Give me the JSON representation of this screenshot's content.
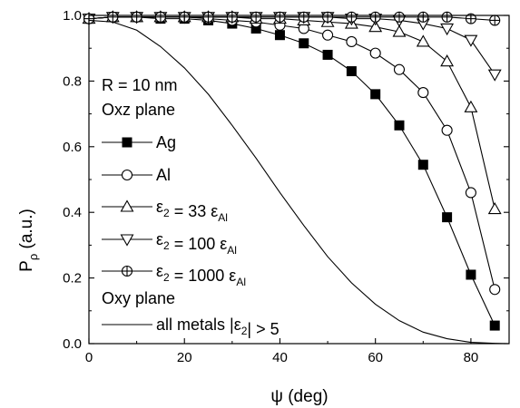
{
  "chart_data": {
    "type": "line",
    "title": "",
    "xlabel": "ψ (deg)",
    "ylabel_main": "P",
    "ylabel_sub": "ρ",
    "ylabel_unit": " (a.u.)",
    "xlim": [
      0,
      88
    ],
    "ylim": [
      0,
      1.0
    ],
    "x_ticks": [
      0,
      20,
      40,
      60,
      80
    ],
    "y_ticks": [
      0.0,
      0.2,
      0.4,
      0.6,
      0.8,
      1.0
    ],
    "grid": false,
    "legend_placement": "left",
    "annotations": {
      "radius": "R = 10 nm",
      "oxz_header": "Oxz plane",
      "oxy_header": "Oxy plane"
    },
    "series": [
      {
        "name": "Ag",
        "legend_parts": [
          {
            "text": "Ag",
            "sub": ""
          }
        ],
        "marker": "filled-square",
        "x": [
          0,
          5,
          10,
          15,
          20,
          25,
          30,
          35,
          40,
          45,
          50,
          55,
          60,
          65,
          70,
          75,
          80,
          85
        ],
        "y": [
          0.99,
          0.995,
          0.995,
          0.99,
          0.99,
          0.985,
          0.975,
          0.96,
          0.94,
          0.915,
          0.88,
          0.83,
          0.76,
          0.665,
          0.545,
          0.385,
          0.21,
          0.055
        ]
      },
      {
        "name": "Al",
        "legend_parts": [
          {
            "text": "Al",
            "sub": ""
          }
        ],
        "marker": "open-circle",
        "x": [
          0,
          5,
          10,
          15,
          20,
          25,
          30,
          35,
          40,
          45,
          50,
          55,
          60,
          65,
          70,
          75,
          80,
          85
        ],
        "y": [
          0.99,
          0.995,
          0.995,
          0.995,
          0.995,
          0.99,
          0.985,
          0.98,
          0.97,
          0.96,
          0.94,
          0.92,
          0.885,
          0.835,
          0.765,
          0.65,
          0.46,
          0.165
        ]
      },
      {
        "name": "ε2 = 33 εAl",
        "legend_parts": [
          {
            "text": "ε",
            "sub": "2"
          },
          {
            "text": " = 33 ε",
            "sub": "Al"
          }
        ],
        "marker": "open-triangle-up",
        "x": [
          0,
          5,
          10,
          15,
          20,
          25,
          30,
          35,
          40,
          45,
          50,
          55,
          60,
          65,
          70,
          75,
          80,
          85
        ],
        "y": [
          0.99,
          0.995,
          0.995,
          0.995,
          0.995,
          0.995,
          0.995,
          0.99,
          0.99,
          0.985,
          0.98,
          0.975,
          0.965,
          0.95,
          0.92,
          0.86,
          0.72,
          0.41
        ]
      },
      {
        "name": "ε2 = 100 εAl",
        "legend_parts": [
          {
            "text": "ε",
            "sub": "2"
          },
          {
            "text": " = 100 ε",
            "sub": "Al"
          }
        ],
        "marker": "open-triangle-down",
        "x": [
          0,
          5,
          10,
          15,
          20,
          25,
          30,
          35,
          40,
          45,
          50,
          55,
          60,
          65,
          70,
          75,
          80,
          85
        ],
        "y": [
          0.99,
          0.995,
          0.995,
          0.995,
          0.995,
          0.995,
          0.995,
          0.995,
          0.995,
          0.995,
          0.995,
          0.99,
          0.99,
          0.985,
          0.975,
          0.96,
          0.925,
          0.82
        ]
      },
      {
        "name": "ε2 = 1000 εAl",
        "legend_parts": [
          {
            "text": "ε",
            "sub": "2"
          },
          {
            "text": " = 1000 ε",
            "sub": "Al"
          }
        ],
        "marker": "open-circle-cross",
        "x": [
          0,
          5,
          10,
          15,
          20,
          25,
          30,
          35,
          40,
          45,
          50,
          55,
          60,
          65,
          70,
          75,
          80,
          85
        ],
        "y": [
          0.99,
          0.995,
          0.995,
          0.995,
          0.995,
          0.995,
          0.995,
          0.995,
          0.995,
          0.995,
          0.995,
          0.995,
          0.995,
          0.995,
          0.995,
          0.995,
          0.99,
          0.985
        ]
      },
      {
        "name": "all metals |ε2| > 5",
        "legend_parts": [
          {
            "text": "all metals |ε",
            "sub": "2"
          },
          {
            "text": "| > 5",
            "sub": ""
          }
        ],
        "marker": "none",
        "x": [
          0,
          5,
          10,
          15,
          20,
          25,
          30,
          35,
          40,
          45,
          50,
          55,
          60,
          65,
          70,
          75,
          80,
          85,
          88
        ],
        "y": [
          0.985,
          0.98,
          0.955,
          0.905,
          0.84,
          0.76,
          0.665,
          0.565,
          0.46,
          0.36,
          0.265,
          0.185,
          0.12,
          0.07,
          0.035,
          0.015,
          0.004,
          0.001,
          0.0
        ]
      }
    ]
  }
}
